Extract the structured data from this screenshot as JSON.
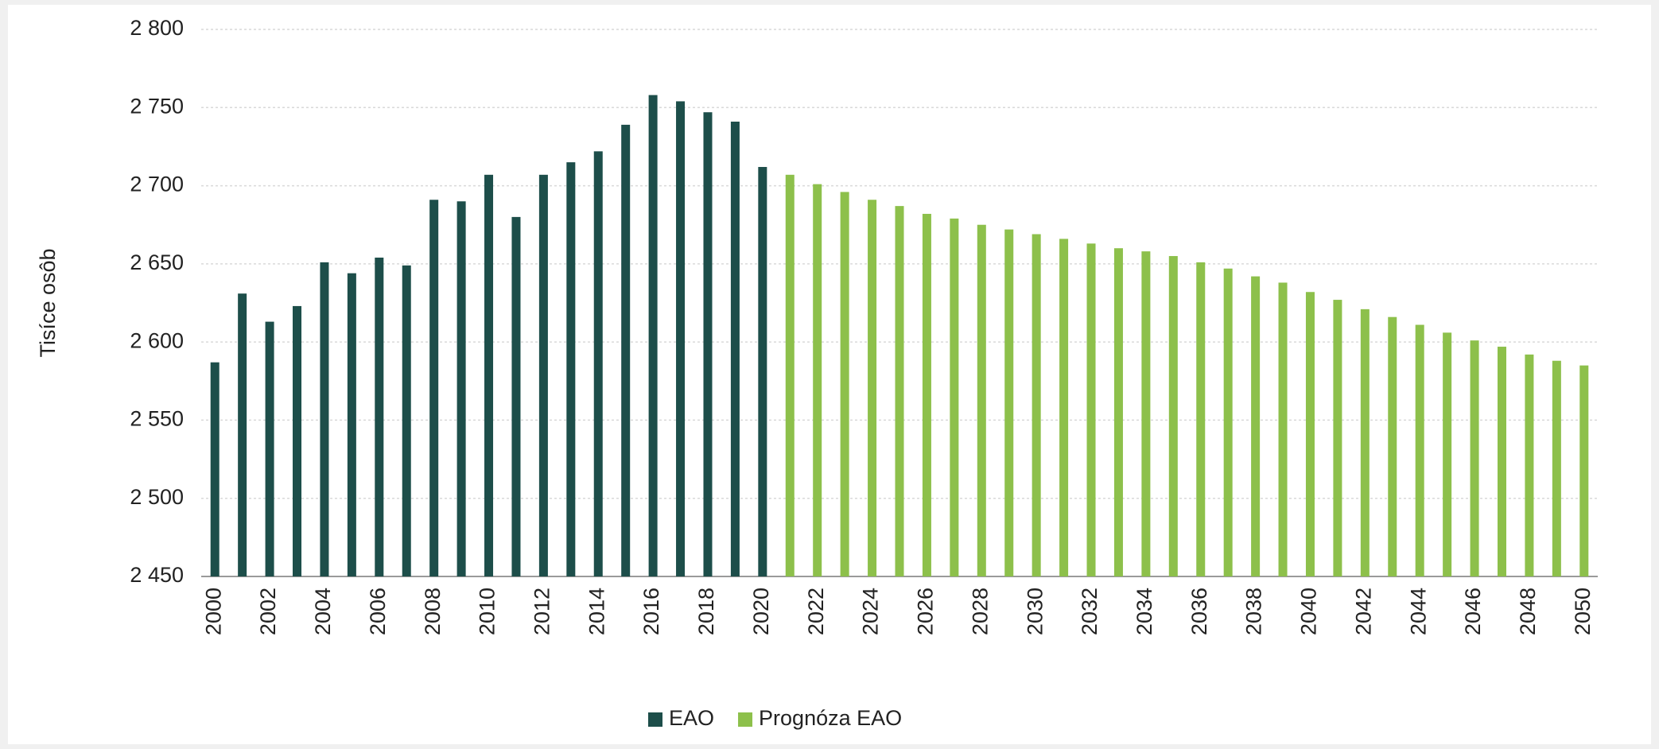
{
  "chart_data": {
    "type": "bar",
    "ylabel": "Tisíce osôb",
    "categories": [
      "2000",
      null,
      "2002",
      null,
      "2004",
      null,
      "2006",
      null,
      "2008",
      null,
      "2010",
      null,
      "2012",
      null,
      "2014",
      null,
      "2016",
      null,
      "2018",
      null,
      "2020",
      null,
      "2022",
      null,
      "2024",
      null,
      "2026",
      null,
      "2028",
      null,
      "2030",
      null,
      "2032",
      null,
      "2034",
      null,
      "2036",
      null,
      "2038",
      null,
      "2040",
      null,
      "2042",
      null,
      "2044",
      null,
      "2046",
      null,
      "2048",
      null,
      "2050"
    ],
    "series": [
      {
        "name": "EAO",
        "color": "#1d4e4a",
        "values": [
          2587,
          2631,
          2613,
          2623,
          2651,
          2644,
          2654,
          2649,
          2691,
          2690,
          2707,
          2680,
          2707,
          2715,
          2722,
          2739,
          2758,
          2754,
          2747,
          2741,
          2712,
          null,
          null,
          null,
          null,
          null,
          null,
          null,
          null,
          null,
          null,
          null,
          null,
          null,
          null,
          null,
          null,
          null,
          null,
          null,
          null,
          null,
          null,
          null,
          null,
          null,
          null,
          null,
          null,
          null,
          null
        ]
      },
      {
        "name": "Prognóza EAO",
        "color": "#8dc04b",
        "values": [
          null,
          null,
          null,
          null,
          null,
          null,
          null,
          null,
          null,
          null,
          null,
          null,
          null,
          null,
          null,
          null,
          null,
          null,
          null,
          null,
          null,
          2707,
          2701,
          2696,
          2691,
          2687,
          2682,
          2679,
          2675,
          2672,
          2669,
          2666,
          2663,
          2660,
          2658,
          2655,
          2651,
          2647,
          2642,
          2638,
          2632,
          2627,
          2621,
          2616,
          2611,
          2606,
          2601,
          2597,
          2592,
          2588,
          2585
        ]
      }
    ],
    "ylim": [
      2450,
      2800
    ],
    "yticks": [
      {
        "value": 2450,
        "label": "2 450"
      },
      {
        "value": 2500,
        "label": "2 500"
      },
      {
        "value": 2550,
        "label": "2 550"
      },
      {
        "value": 2600,
        "label": "2 600"
      },
      {
        "value": 2650,
        "label": "2 650"
      },
      {
        "value": 2700,
        "label": "2 700"
      },
      {
        "value": 2750,
        "label": "2 750"
      },
      {
        "value": 2800,
        "label": "2 800"
      }
    ],
    "grid": true,
    "legend": "bottom"
  }
}
